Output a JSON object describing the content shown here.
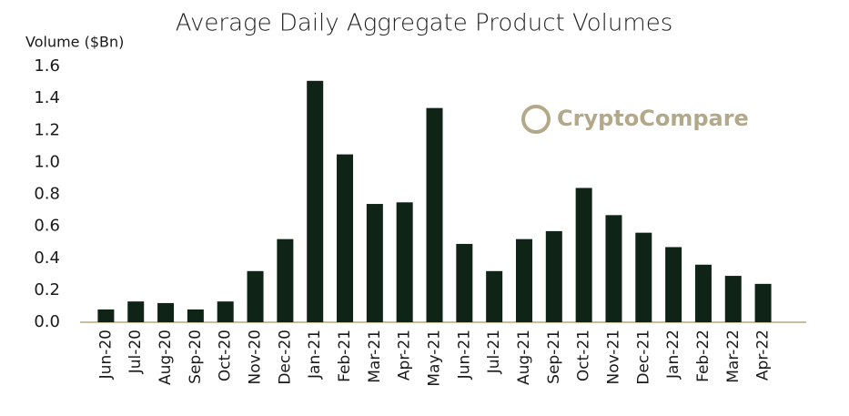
{
  "chart_data": {
    "type": "bar",
    "title": "Average Daily Aggregate Product Volumes",
    "y_label": "Volume ($Bn)",
    "watermark": "CryptoCompare",
    "categories": [
      "Jun-20",
      "Jul-20",
      "Aug-20",
      "Sep-20",
      "Oct-20",
      "Nov-20",
      "Dec-20",
      "Jan-21",
      "Feb-21",
      "Mar-21",
      "Apr-21",
      "May-21",
      "Jun-21",
      "Jul-21",
      "Aug-21",
      "Sep-21",
      "Oct-21",
      "Nov-21",
      "Dec-21",
      "Jan-22",
      "Feb-22",
      "Mar-22",
      "Apr-22"
    ],
    "values": [
      0.08,
      0.13,
      0.12,
      0.08,
      0.13,
      0.32,
      0.52,
      1.51,
      1.05,
      0.74,
      0.75,
      1.34,
      0.49,
      0.32,
      0.52,
      0.57,
      0.84,
      0.67,
      0.56,
      0.47,
      0.36,
      0.29,
      0.24
    ],
    "color": "#0f2417",
    "ylim": [
      0,
      1.6
    ],
    "yticks": [
      {
        "value": 0,
        "label": "0.0"
      },
      0.2,
      0.4,
      0.6,
      0.8,
      {
        "value": 1,
        "label": "1.0"
      },
      1.2,
      1.4,
      1.6
    ],
    "grid": false
  }
}
